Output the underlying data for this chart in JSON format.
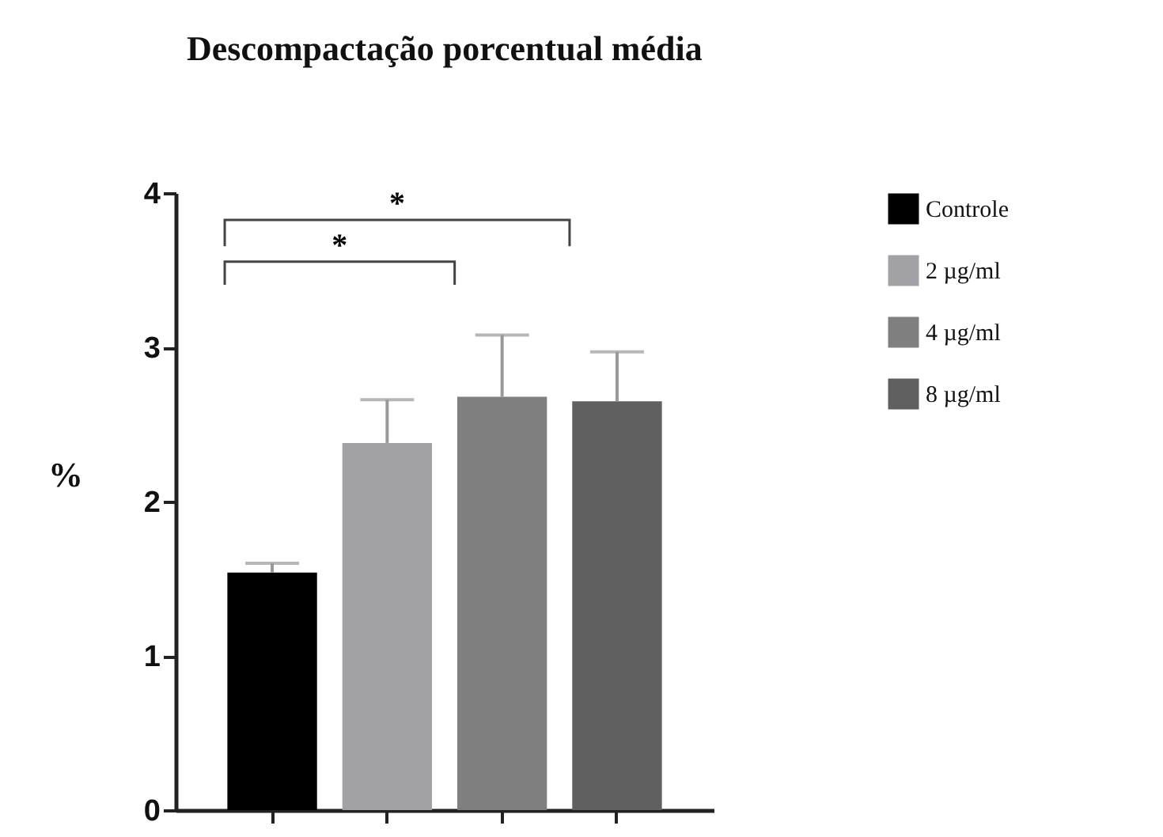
{
  "chart_data": {
    "type": "bar",
    "title": "Descompactação porcentual média",
    "ylabel": "%",
    "categories": [
      null,
      null,
      null,
      null
    ],
    "series": [
      {
        "name": "Controle",
        "color": "#000000",
        "values": [
          1.54,
          null,
          null,
          null
        ],
        "errors": [
          [
            1.54,
            1.6
          ],
          null,
          null,
          null
        ]
      },
      {
        "name": "2 µg/ml",
        "color": "#a2a1a6",
        "values": [
          null,
          2.38,
          null,
          null
        ],
        "errors": [
          null,
          [
            2.38,
            2.66
          ],
          null,
          null
        ]
      },
      {
        "name": "4 µg/ml",
        "color": "#7f7f7f",
        "values": [
          null,
          null,
          2.68,
          null
        ],
        "errors": [
          null,
          null,
          [
            2.68,
            3.08
          ],
          null
        ]
      },
      {
        "name": "8 µg/ml",
        "color": "#606060",
        "values": [
          null,
          null,
          null,
          2.65
        ],
        "errors": [
          null,
          null,
          null,
          [
            2.65,
            2.97
          ]
        ]
      }
    ],
    "stacked": true,
    "ylim": [
      0,
      4
    ],
    "yticks": [
      0,
      1,
      2,
      3,
      4
    ],
    "grid": false,
    "legend": "right",
    "tick_labels": "y",
    "annotations": [
      "*",
      "*"
    ]
  }
}
